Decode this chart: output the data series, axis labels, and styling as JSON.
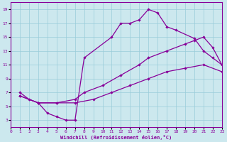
{
  "xlabel": "Windchill (Refroidissement éolien,°C)",
  "bg_color": "#cce8ee",
  "grid_color": "#99ccd9",
  "line_color": "#880099",
  "xmin": 0,
  "xmax": 23,
  "ymin": 2,
  "ymax": 20,
  "yticks": [
    3,
    5,
    7,
    9,
    11,
    13,
    15,
    17,
    19
  ],
  "xticks": [
    0,
    1,
    2,
    3,
    4,
    5,
    6,
    7,
    8,
    9,
    10,
    11,
    12,
    13,
    14,
    15,
    16,
    17,
    18,
    19,
    20,
    21,
    22,
    23
  ],
  "curve1_x": [
    1,
    2,
    3,
    4,
    5,
    6,
    7,
    8,
    11,
    12,
    13,
    14,
    15,
    16,
    17,
    18,
    20,
    21,
    22,
    23
  ],
  "curve1_y": [
    7,
    6,
    5.5,
    4,
    3.5,
    3,
    3,
    12,
    15,
    17,
    17,
    17.5,
    19,
    18.5,
    16.5,
    16,
    14.8,
    13,
    12,
    11
  ],
  "curve2_x": [
    1,
    3,
    5,
    7,
    8,
    10,
    12,
    14,
    15,
    17,
    19,
    20,
    21,
    22,
    23
  ],
  "curve2_y": [
    6.5,
    5.5,
    5.5,
    6,
    7,
    8,
    9.5,
    11,
    12,
    13,
    14,
    14.5,
    15,
    13.5,
    11
  ],
  "curve3_x": [
    1,
    3,
    5,
    7,
    9,
    11,
    13,
    15,
    17,
    19,
    21,
    23
  ],
  "curve3_y": [
    6.5,
    5.5,
    5.5,
    5.5,
    6,
    7,
    8,
    9,
    10,
    10.5,
    11,
    10
  ]
}
